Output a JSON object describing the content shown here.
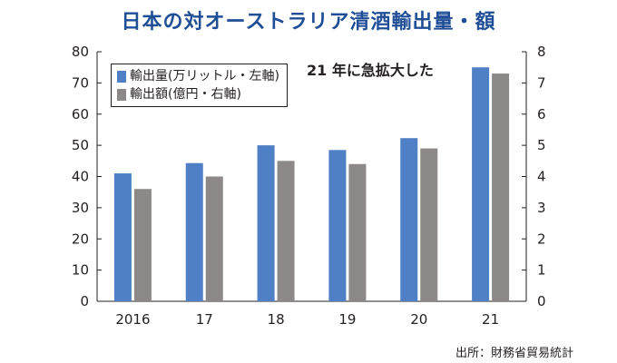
{
  "chart_data": {
    "type": "bar",
    "title": "日本の対オーストラリア清酒輸出量・額",
    "categories": [
      "2016",
      "17",
      "18",
      "19",
      "20",
      "21"
    ],
    "series": [
      {
        "name": "輸出量(万リットル・左軸)",
        "axis": "left",
        "color": "#4f7fc5",
        "values": [
          41,
          44.3,
          50,
          48.5,
          52.3,
          75
        ]
      },
      {
        "name": "輸出額(億円・右軸)",
        "axis": "right",
        "color": "#8c8988",
        "values": [
          3.6,
          4.0,
          4.5,
          4.4,
          4.9,
          7.3
        ]
      }
    ],
    "y_left": {
      "ylim": [
        0,
        80
      ],
      "ticks": [
        "0",
        "10",
        "20",
        "30",
        "40",
        "50",
        "60",
        "70",
        "80"
      ]
    },
    "y_right": {
      "ylim": [
        0,
        8
      ],
      "ticks": [
        "0",
        "1",
        "2",
        "3",
        "4",
        "5",
        "6",
        "7",
        "8"
      ]
    },
    "grid": false,
    "legend_position": "top-left",
    "annotation": "21 年に急拡大した",
    "source": "出所：財務省貿易統計"
  }
}
